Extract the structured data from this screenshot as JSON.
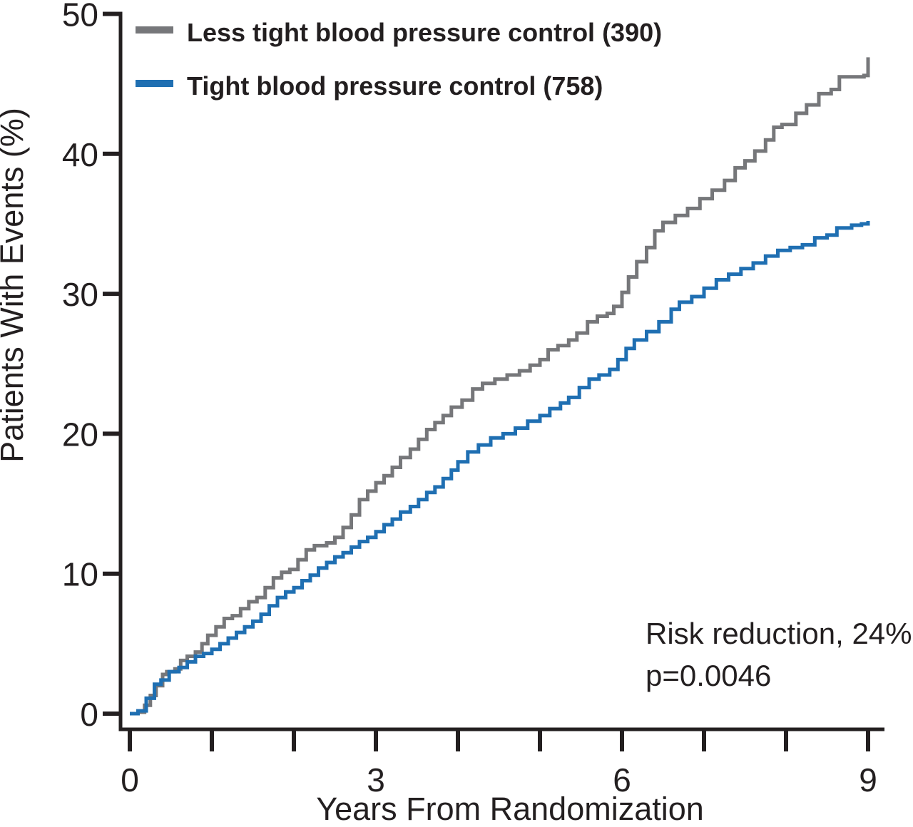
{
  "figure": {
    "background": "#ffffff",
    "text_color": "#231f20",
    "axis_color": "#231f20"
  },
  "legend": {
    "items": [
      {
        "label": "Less tight blood pressure control (390)",
        "color": "#76777a"
      },
      {
        "label": "Tight blood pressure control (758)",
        "color": "#1f6fb2"
      }
    ]
  },
  "annotation": {
    "line1": "Risk reduction, 24%",
    "line2": "p=0.0046"
  },
  "chart_data": {
    "type": "line",
    "curve_style": "step-after",
    "title": "",
    "xlabel": "Years From Randomization",
    "ylabel": "Patients With Events (%)",
    "xlim": [
      0,
      9
    ],
    "ylim": [
      0,
      50
    ],
    "x_ticks": [
      0,
      1,
      2,
      3,
      4,
      5,
      6,
      7,
      8,
      9
    ],
    "x_labeled_ticks": [
      0,
      3,
      6,
      9
    ],
    "y_ticks": [
      0,
      10,
      20,
      30,
      40,
      50
    ],
    "grid": false,
    "legend_position": "top-left",
    "series": [
      {
        "name": "Less tight blood pressure control (390)",
        "color": "#76777a",
        "points": [
          [
            0,
            0
          ],
          [
            0.1,
            0.1
          ],
          [
            0.18,
            0.6
          ],
          [
            0.25,
            1.3
          ],
          [
            0.32,
            2.0
          ],
          [
            0.4,
            2.8
          ],
          [
            0.45,
            3.0
          ],
          [
            0.55,
            3.2
          ],
          [
            0.62,
            3.8
          ],
          [
            0.7,
            4.1
          ],
          [
            0.8,
            4.4
          ],
          [
            0.88,
            5.0
          ],
          [
            0.95,
            5.6
          ],
          [
            1.05,
            6.2
          ],
          [
            1.15,
            6.8
          ],
          [
            1.25,
            7.0
          ],
          [
            1.35,
            7.5
          ],
          [
            1.45,
            8.0
          ],
          [
            1.55,
            8.3
          ],
          [
            1.65,
            9.0
          ],
          [
            1.75,
            9.7
          ],
          [
            1.85,
            10.1
          ],
          [
            1.95,
            10.3
          ],
          [
            2.05,
            11.0
          ],
          [
            2.15,
            11.7
          ],
          [
            2.25,
            12.0
          ],
          [
            2.4,
            12.2
          ],
          [
            2.5,
            12.6
          ],
          [
            2.6,
            13.3
          ],
          [
            2.7,
            14.2
          ],
          [
            2.8,
            15.3
          ],
          [
            2.9,
            15.9
          ],
          [
            3.0,
            16.5
          ],
          [
            3.1,
            17.0
          ],
          [
            3.2,
            17.6
          ],
          [
            3.3,
            18.3
          ],
          [
            3.42,
            18.9
          ],
          [
            3.52,
            19.6
          ],
          [
            3.62,
            20.3
          ],
          [
            3.72,
            20.8
          ],
          [
            3.82,
            21.3
          ],
          [
            3.92,
            21.9
          ],
          [
            4.05,
            22.4
          ],
          [
            4.18,
            23.2
          ],
          [
            4.3,
            23.6
          ],
          [
            4.45,
            23.9
          ],
          [
            4.6,
            24.2
          ],
          [
            4.75,
            24.5
          ],
          [
            4.88,
            24.9
          ],
          [
            5.0,
            25.3
          ],
          [
            5.1,
            26.0
          ],
          [
            5.22,
            26.3
          ],
          [
            5.35,
            26.7
          ],
          [
            5.45,
            27.2
          ],
          [
            5.58,
            28.0
          ],
          [
            5.7,
            28.4
          ],
          [
            5.82,
            28.6
          ],
          [
            5.9,
            29.1
          ],
          [
            6.0,
            30.1
          ],
          [
            6.08,
            31.2
          ],
          [
            6.18,
            32.3
          ],
          [
            6.3,
            33.3
          ],
          [
            6.4,
            34.5
          ],
          [
            6.5,
            35.1
          ],
          [
            6.65,
            35.6
          ],
          [
            6.8,
            36.1
          ],
          [
            6.95,
            36.8
          ],
          [
            7.1,
            37.4
          ],
          [
            7.25,
            38.1
          ],
          [
            7.38,
            39.0
          ],
          [
            7.5,
            39.5
          ],
          [
            7.62,
            40.2
          ],
          [
            7.75,
            41.0
          ],
          [
            7.85,
            41.9
          ],
          [
            7.95,
            42.1
          ],
          [
            8.12,
            42.9
          ],
          [
            8.25,
            43.5
          ],
          [
            8.4,
            44.3
          ],
          [
            8.55,
            44.6
          ],
          [
            8.65,
            45.5
          ],
          [
            8.95,
            45.6
          ],
          [
            9.0,
            46.9
          ]
        ]
      },
      {
        "name": "Tight blood pressure control (758)",
        "color": "#1f6fb2",
        "points": [
          [
            0,
            0
          ],
          [
            0.1,
            0.2
          ],
          [
            0.2,
            1.1
          ],
          [
            0.3,
            2.1
          ],
          [
            0.38,
            2.4
          ],
          [
            0.48,
            3.0
          ],
          [
            0.6,
            3.3
          ],
          [
            0.7,
            3.7
          ],
          [
            0.8,
            4.1
          ],
          [
            0.9,
            4.3
          ],
          [
            1.0,
            4.6
          ],
          [
            1.1,
            5.0
          ],
          [
            1.2,
            5.4
          ],
          [
            1.3,
            5.8
          ],
          [
            1.4,
            6.2
          ],
          [
            1.5,
            6.6
          ],
          [
            1.6,
            7.1
          ],
          [
            1.7,
            7.7
          ],
          [
            1.8,
            8.3
          ],
          [
            1.9,
            8.7
          ],
          [
            2.0,
            9.0
          ],
          [
            2.1,
            9.5
          ],
          [
            2.2,
            9.9
          ],
          [
            2.3,
            10.4
          ],
          [
            2.4,
            10.8
          ],
          [
            2.5,
            11.2
          ],
          [
            2.6,
            11.5
          ],
          [
            2.7,
            11.9
          ],
          [
            2.8,
            12.3
          ],
          [
            2.9,
            12.6
          ],
          [
            3.0,
            13.0
          ],
          [
            3.1,
            13.5
          ],
          [
            3.2,
            13.9
          ],
          [
            3.3,
            14.4
          ],
          [
            3.42,
            14.8
          ],
          [
            3.52,
            15.3
          ],
          [
            3.62,
            15.8
          ],
          [
            3.72,
            16.2
          ],
          [
            3.82,
            16.8
          ],
          [
            3.92,
            17.4
          ],
          [
            4.0,
            18.0
          ],
          [
            4.12,
            18.7
          ],
          [
            4.25,
            19.2
          ],
          [
            4.4,
            19.7
          ],
          [
            4.55,
            20.0
          ],
          [
            4.7,
            20.4
          ],
          [
            4.85,
            20.9
          ],
          [
            5.0,
            21.3
          ],
          [
            5.12,
            21.8
          ],
          [
            5.25,
            22.2
          ],
          [
            5.35,
            22.6
          ],
          [
            5.48,
            23.3
          ],
          [
            5.6,
            23.9
          ],
          [
            5.72,
            24.2
          ],
          [
            5.85,
            24.6
          ],
          [
            5.95,
            25.3
          ],
          [
            6.05,
            26.1
          ],
          [
            6.15,
            26.7
          ],
          [
            6.3,
            27.3
          ],
          [
            6.45,
            28.0
          ],
          [
            6.6,
            28.9
          ],
          [
            6.7,
            29.4
          ],
          [
            6.85,
            29.8
          ],
          [
            7.0,
            30.4
          ],
          [
            7.15,
            31.0
          ],
          [
            7.3,
            31.4
          ],
          [
            7.45,
            31.8
          ],
          [
            7.6,
            32.2
          ],
          [
            7.75,
            32.7
          ],
          [
            7.9,
            33.1
          ],
          [
            8.05,
            33.3
          ],
          [
            8.2,
            33.5
          ],
          [
            8.35,
            34.0
          ],
          [
            8.5,
            34.2
          ],
          [
            8.62,
            34.7
          ],
          [
            8.8,
            34.9
          ],
          [
            8.92,
            35.0
          ],
          [
            9.0,
            35.2
          ]
        ]
      }
    ]
  }
}
